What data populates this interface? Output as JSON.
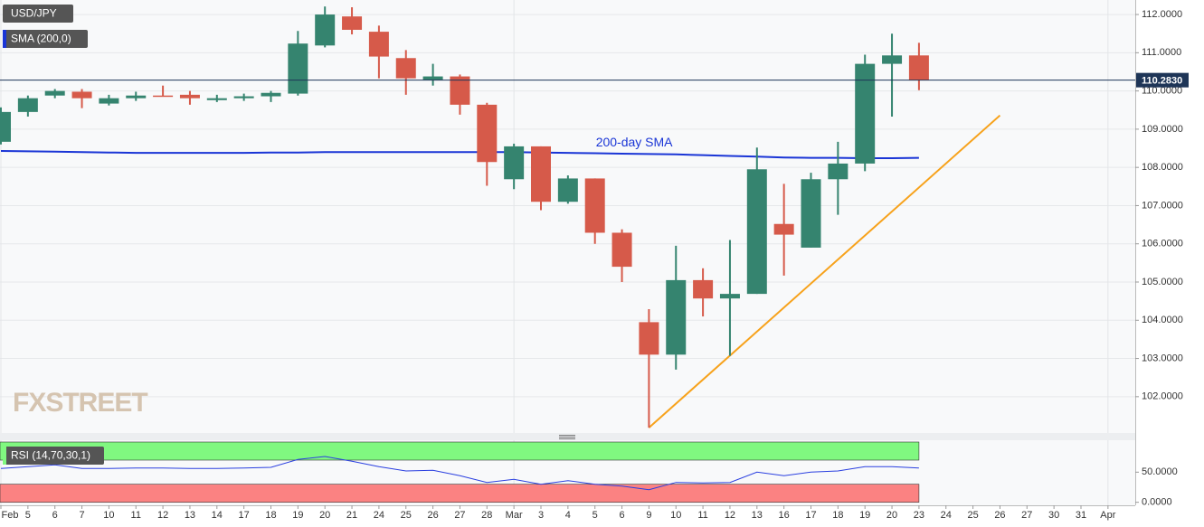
{
  "chart_data": {
    "type": "candlestick",
    "title": "USD/JPY",
    "categories": [
      "Feb",
      "5",
      "6",
      "7",
      "10",
      "11",
      "12",
      "13",
      "14",
      "17",
      "18",
      "19",
      "20",
      "21",
      "24",
      "25",
      "26",
      "27",
      "28",
      "Mar",
      "3",
      "4",
      "5",
      "6",
      "9",
      "10",
      "11",
      "12",
      "13",
      "16",
      "17",
      "18",
      "19",
      "20",
      "23",
      "24",
      "25",
      "26",
      "27",
      "30",
      "31",
      "Apr"
    ],
    "open": [
      108.67,
      109.45,
      109.88,
      109.98,
      109.67,
      109.81,
      109.88,
      109.9,
      109.76,
      109.81,
      109.86,
      109.93,
      111.19,
      111.95,
      111.55,
      110.86,
      110.29,
      110.38,
      109.64,
      107.69,
      108.55,
      107.1,
      107.71,
      106.29,
      103.95,
      103.1,
      105.05,
      104.57,
      104.69,
      106.52,
      105.9,
      107.69,
      108.1,
      110.71,
      110.93,
      null,
      null,
      null,
      null,
      null,
      null,
      null
    ],
    "high": [
      109.57,
      109.88,
      110.05,
      110.05,
      109.9,
      109.98,
      110.14,
      110.0,
      109.9,
      109.93,
      110.0,
      111.57,
      112.21,
      112.19,
      111.71,
      111.07,
      110.71,
      110.43,
      109.69,
      108.62,
      108.55,
      107.79,
      107.71,
      106.38,
      104.29,
      105.95,
      105.36,
      106.1,
      108.52,
      107.57,
      107.86,
      108.67,
      110.95,
      111.5,
      111.26,
      null,
      null,
      null,
      null,
      null,
      null,
      null
    ],
    "low": [
      108.6,
      109.33,
      109.81,
      109.55,
      109.62,
      109.74,
      109.86,
      109.64,
      109.71,
      109.74,
      109.71,
      109.88,
      111.14,
      111.48,
      110.33,
      109.9,
      110.14,
      109.38,
      107.52,
      107.43,
      106.88,
      107.05,
      106.0,
      105.0,
      101.19,
      102.71,
      104.1,
      103.07,
      104.69,
      105.17,
      105.9,
      106.76,
      107.9,
      109.33,
      110.02,
      null,
      null,
      null,
      null,
      null,
      null,
      null
    ],
    "close": [
      109.45,
      109.81,
      110.0,
      109.81,
      109.81,
      109.88,
      109.86,
      109.81,
      109.81,
      109.86,
      109.95,
      111.24,
      112.0,
      111.6,
      110.9,
      110.33,
      110.38,
      109.64,
      108.14,
      108.55,
      107.1,
      107.71,
      106.29,
      105.4,
      103.1,
      105.05,
      104.57,
      104.69,
      107.95,
      106.24,
      107.69,
      108.1,
      110.71,
      110.93,
      110.28,
      null,
      null,
      null,
      null,
      null,
      null,
      null
    ],
    "up_color": "#35846f",
    "down_color": "#d65a4a",
    "ylim": [
      101.05,
      112.38
    ],
    "yticks": [
      {
        "value": 102,
        "label": "102.0000"
      },
      {
        "value": 103,
        "label": "103.0000"
      },
      {
        "value": 104,
        "label": "104.0000"
      },
      {
        "value": 105,
        "label": "105.0000"
      },
      {
        "value": 106,
        "label": "106.0000"
      },
      {
        "value": 107,
        "label": "107.0000"
      },
      {
        "value": 108,
        "label": "108.0000"
      },
      {
        "value": 109,
        "label": "109.0000"
      },
      {
        "value": 110,
        "label": "110.0000"
      },
      {
        "value": 111,
        "label": "111.0000"
      },
      {
        "value": 112,
        "label": "112.0000"
      }
    ],
    "grid": true,
    "last_price": {
      "value": 110.283,
      "label": "110.2830",
      "color": "#1e3557"
    },
    "overlays": [
      {
        "name": "SMA (200,0)",
        "color": "#1a35d6",
        "annotation": "200-day SMA",
        "values": [
          108.43,
          108.42,
          108.41,
          108.4,
          108.39,
          108.38,
          108.38,
          108.38,
          108.38,
          108.38,
          108.39,
          108.39,
          108.4,
          108.4,
          108.4,
          108.4,
          108.4,
          108.4,
          108.4,
          108.4,
          108.39,
          108.38,
          108.37,
          108.36,
          108.35,
          108.34,
          108.32,
          108.3,
          108.28,
          108.26,
          108.25,
          108.25,
          108.24,
          108.24,
          108.25,
          null,
          null,
          null,
          null,
          null,
          null,
          null
        ]
      }
    ],
    "trendline": {
      "color": "#f7a21b",
      "x": [
        24,
        37
      ],
      "y": [
        101.19,
        109.36
      ]
    },
    "watermark": "FXSTREET",
    "indicator": {
      "type": "line",
      "name": "RSI (14,70,30,1)",
      "color": "#2a3fe0",
      "values": [
        56,
        59,
        62,
        56,
        56,
        57,
        57,
        56,
        56,
        57,
        58,
        71,
        76,
        68,
        59,
        52,
        53,
        44,
        33,
        38,
        30,
        36,
        30,
        27,
        21,
        33,
        32,
        33,
        50,
        44,
        50,
        52,
        59,
        59,
        57,
        null,
        null,
        null,
        null,
        null,
        null,
        null
      ],
      "ylim": [
        -5,
        103
      ],
      "yticks": [
        {
          "value": 0,
          "label": "0.0000"
        },
        {
          "value": 50,
          "label": "50.0000"
        }
      ],
      "bands": [
        {
          "from": 70,
          "to": 100,
          "color": "#80f880"
        },
        {
          "from": 0,
          "to": 30,
          "color": "#fb8282"
        }
      ]
    }
  }
}
